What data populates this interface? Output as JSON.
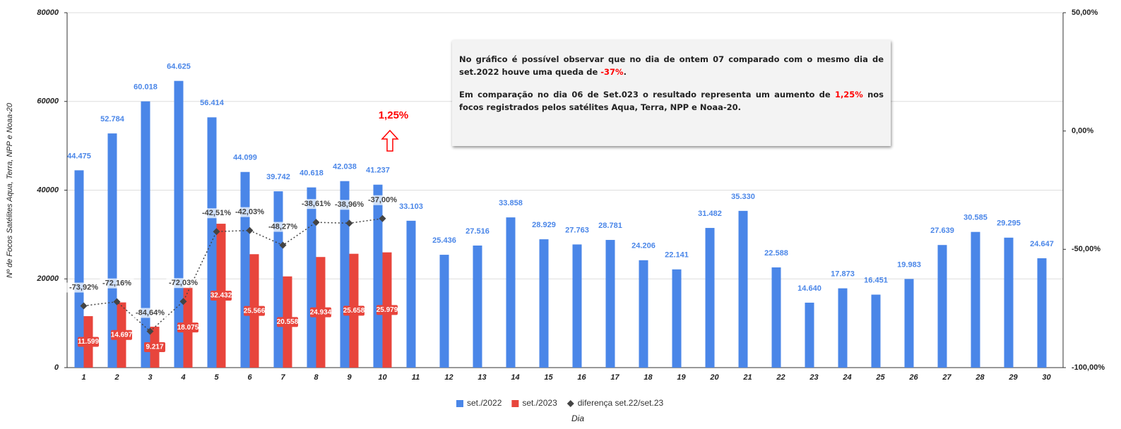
{
  "chart_data": {
    "type": "bar",
    "y_label": "Nº de Focos Satélites Aqua, Terra, NPP e Noaa-20",
    "x_label": "Dia",
    "categories": [
      "1",
      "2",
      "3",
      "4",
      "5",
      "6",
      "7",
      "8",
      "9",
      "10",
      "11",
      "12",
      "13",
      "14",
      "15",
      "16",
      "17",
      "18",
      "19",
      "20",
      "21",
      "22",
      "23",
      "24",
      "25",
      "26",
      "27",
      "28",
      "29",
      "30"
    ],
    "series": [
      {
        "name": "set./2022",
        "type": "bar",
        "color": "#4a86e8",
        "values": [
          44475,
          52784,
          60018,
          64625,
          56414,
          44099,
          39742,
          40618,
          42038,
          41237,
          33103,
          25436,
          27516,
          33858,
          28929,
          27763,
          28781,
          24206,
          22141,
          31482,
          35330,
          22588,
          14640,
          17873,
          16451,
          19983,
          27639,
          30585,
          29295,
          24647
        ],
        "value_labels": [
          "44.475",
          "52.784",
          "60.018",
          "64.625",
          "56.414",
          "44.099",
          "39.742",
          "40.618",
          "42.038",
          "41.237",
          "33.103",
          "25.436",
          "27.516",
          "33.858",
          "28.929",
          "27.763",
          "28.781",
          "24.206",
          "22.141",
          "31.482",
          "35.330",
          "22.588",
          "14.640",
          "17.873",
          "16.451",
          "19.983",
          "27.639",
          "30.585",
          "29.295",
          "24.647"
        ]
      },
      {
        "name": "set./2023",
        "type": "bar",
        "color": "#e8453c",
        "values": [
          11599,
          14697,
          9217,
          18075,
          32432,
          25566,
          20558,
          24934,
          25658,
          25979,
          null,
          null,
          null,
          null,
          null,
          null,
          null,
          null,
          null,
          null,
          null,
          null,
          null,
          null,
          null,
          null,
          null,
          null,
          null,
          null
        ],
        "value_labels": [
          "11.599",
          "14.697",
          "9.217",
          "18.075",
          "32.432",
          "25.566",
          "20.558",
          "24.934",
          "25.658",
          "25.979",
          null,
          null,
          null,
          null,
          null,
          null,
          null,
          null,
          null,
          null,
          null,
          null,
          null,
          null,
          null,
          null,
          null,
          null,
          null,
          null
        ]
      },
      {
        "name": "diferença set.22/set.23",
        "type": "line",
        "axis": "y2",
        "color": "#444444",
        "marker": "diamond",
        "line_style": "dotted",
        "values": [
          -73.92,
          -72.16,
          -84.64,
          -72.03,
          -42.51,
          -42.03,
          -48.27,
          -38.61,
          -38.96,
          -37.0,
          null,
          null,
          null,
          null,
          null,
          null,
          null,
          null,
          null,
          null,
          null,
          null,
          null,
          null,
          null,
          null,
          null,
          null,
          null,
          null
        ],
        "value_labels": [
          "-73,92%",
          "-72,16%",
          "-84,64%",
          "-72,03%",
          "-42,51%",
          "-42,03%",
          "-48,27%",
          "-38,61%",
          "-38,96%",
          "-37,00%",
          null,
          null,
          null,
          null,
          null,
          null,
          null,
          null,
          null,
          null,
          null,
          null,
          null,
          null,
          null,
          null,
          null,
          null,
          null,
          null
        ]
      }
    ],
    "ylim": [
      0,
      80000
    ],
    "yticks": [
      0,
      20000,
      40000,
      60000,
      80000
    ],
    "y2lim": [
      -100,
      50
    ],
    "y2ticks": [
      {
        "value": -100,
        "label": "-100,00%"
      },
      {
        "value": -50,
        "label": "-50,00%"
      },
      {
        "value": 0,
        "label": "0,00%"
      },
      {
        "value": 50,
        "label": "50,00%"
      }
    ],
    "grid": true,
    "legend": "bottom",
    "annotation": {
      "text": "1,25%",
      "color": "#ff0000"
    },
    "note": {
      "p1": [
        "No gráfico é possível observar que no dia de ontem 07 comparado com o mesmo dia de set.2022  houve uma queda de ",
        "-37%",
        "."
      ],
      "p2": [
        "Em comparação no dia 06 de Set.023 o resultado representa um aumento de ",
        "1,25%",
        " nos focos registrados pelos satélites Aqua, Terra, NPP e Noaa-20."
      ],
      "highlight_color": "#ff0000"
    }
  }
}
